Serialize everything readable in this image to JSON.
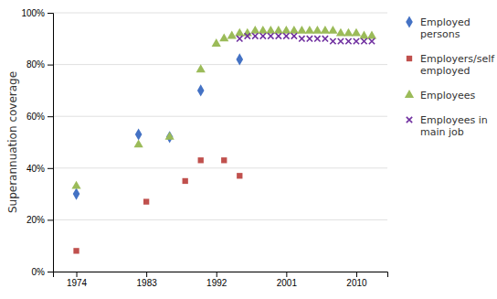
{
  "chart_data": {
    "type": "scatter",
    "ylabel": "Superannuation coverage",
    "xlim": [
      1971,
      2014
    ],
    "ylim": [
      0,
      1.0
    ],
    "xticks": [
      1974,
      1983,
      1992,
      2001,
      2010
    ],
    "yticks": [
      {
        "value": 0.0,
        "label": "0%"
      },
      {
        "value": 0.2,
        "label": "20%"
      },
      {
        "value": 0.4,
        "label": "40%"
      },
      {
        "value": 0.6,
        "label": "60%"
      },
      {
        "value": 0.8,
        "label": "80%"
      },
      {
        "value": 1.0,
        "label": "100%"
      }
    ],
    "grid": true,
    "legend": "right",
    "series": [
      {
        "name": "Employed\npersons",
        "color": "#4472C4",
        "marker": "diamond",
        "x": [
          1974,
          1982,
          1986,
          1990,
          1995
        ],
        "values": [
          0.3,
          0.53,
          0.52,
          0.7,
          0.82
        ]
      },
      {
        "name": "Employers/self\nemployed",
        "color": "#C0504D",
        "marker": "square",
        "x": [
          1974,
          1983,
          1988,
          1990,
          1993,
          1995
        ],
        "values": [
          0.08,
          0.27,
          0.35,
          0.43,
          0.43,
          0.37
        ]
      },
      {
        "name": "Employees",
        "color": "#9BBB59",
        "marker": "triangle",
        "x": [
          1974,
          1982,
          1986,
          1990,
          1992,
          1993,
          1994,
          1995,
          1996,
          1997,
          1998,
          1999,
          2000,
          2001,
          2002,
          2003,
          2004,
          2005,
          2006,
          2007,
          2008,
          2009,
          2010,
          2011,
          2012
        ],
        "values": [
          0.33,
          0.49,
          0.52,
          0.78,
          0.88,
          0.9,
          0.91,
          0.92,
          0.92,
          0.93,
          0.93,
          0.93,
          0.93,
          0.93,
          0.93,
          0.93,
          0.93,
          0.93,
          0.93,
          0.93,
          0.92,
          0.92,
          0.92,
          0.91,
          0.91
        ]
      },
      {
        "name": "Employees in\nmain job",
        "color": "#7030A0",
        "marker": "x",
        "x": [
          1995,
          1996,
          1997,
          1998,
          1999,
          2000,
          2001,
          2002,
          2003,
          2004,
          2005,
          2006,
          2007,
          2008,
          2009,
          2010,
          2011,
          2012
        ],
        "values": [
          0.9,
          0.91,
          0.91,
          0.91,
          0.91,
          0.91,
          0.91,
          0.91,
          0.9,
          0.9,
          0.9,
          0.9,
          0.89,
          0.89,
          0.89,
          0.89,
          0.89,
          0.89
        ]
      }
    ]
  }
}
